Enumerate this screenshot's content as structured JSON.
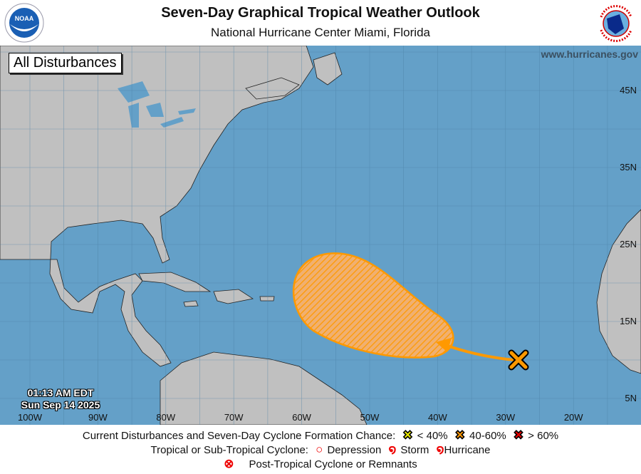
{
  "header": {
    "title": "Seven-Day Graphical Tropical Weather Outlook",
    "subtitle": "National Hurricane Center  Miami, Florida",
    "logo_left": "NOAA",
    "logo_right": "NATIONAL WEATHER SERVICE"
  },
  "map": {
    "panel_label": "All Disturbances",
    "website": "www.hurricanes.gov",
    "time": "01:13 AM EDT",
    "date": "Sun Sep 14 2025",
    "lon_labels": [
      "100W",
      "90W",
      "80W",
      "70W",
      "60W",
      "50W",
      "40W",
      "30W",
      "20W"
    ],
    "lat_labels": [
      "45N",
      "35N",
      "25N",
      "15N",
      "5N"
    ],
    "colors": {
      "ocean": "#64a0c8",
      "land": "#c0c0c0",
      "outlook": "#ff9900"
    },
    "disturbances": [
      {
        "chance_category": "40-60%",
        "marker_color": "#ff9900"
      }
    ]
  },
  "legend": {
    "row1_label": "Current Disturbances and Seven-Day Cyclone Formation Chance:",
    "low": "< 40%",
    "medium": "40-60%",
    "high": "> 60%",
    "row2_label": "Tropical or Sub-Tropical Cyclone:",
    "depression": "Depression",
    "storm": "Storm",
    "hurricane": "Hurricane",
    "post_tropical": "Post-Tropical Cyclone or Remnants"
  }
}
